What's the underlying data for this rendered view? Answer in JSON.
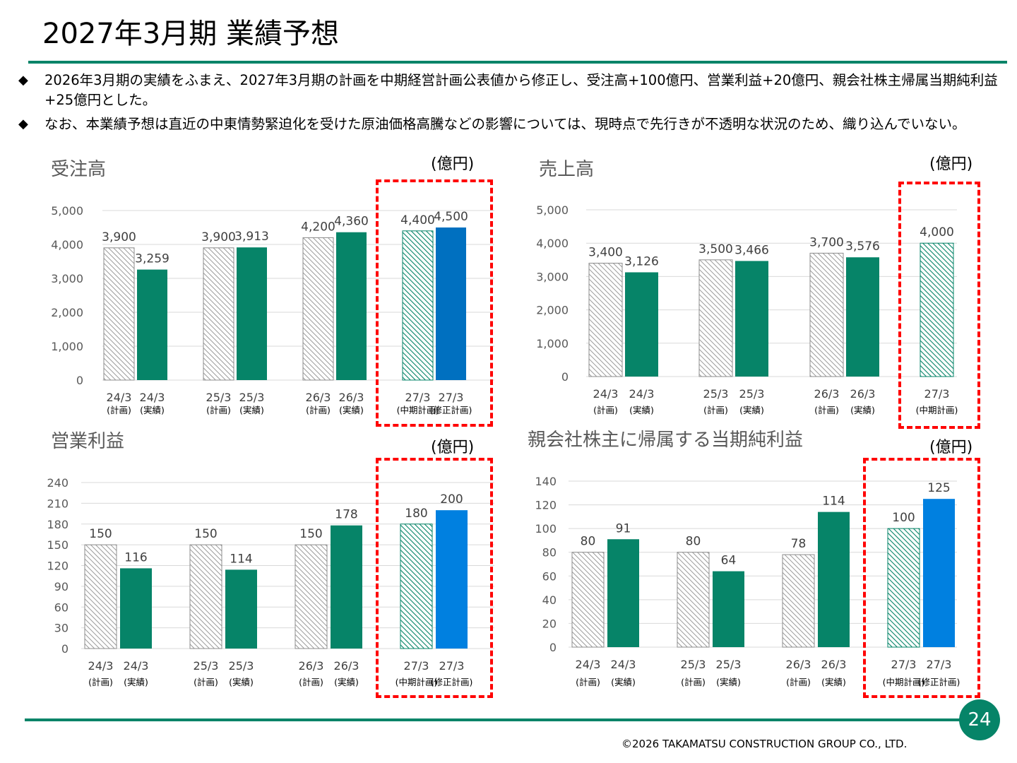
{
  "page": {
    "title": "2027年3月期 業績予想",
    "bullets": [
      {
        "mark": "◆",
        "text": "2026年3月期の実績をふまえ、2027年3月期の計画を中期経営計画公表値から修正し、受注高+100億円、営業利益+20億円、親会社株主帰属当期純利益+25億円とした。"
      },
      {
        "mark": "◆",
        "text": "なお、本業績予想は直近の中東情勢緊迫化を受けた原油価格高騰などの影響については、現時点で先行きが不透明な状況のため、織り込んでいない。"
      }
    ],
    "page_number": "24",
    "copyright": "©2026 TAKAMATSU CONSTRUCTION GROUP CO., LTD."
  },
  "colors": {
    "accent_green": "#068468",
    "plan_hatch": "#9a9a9a",
    "revised_blue_1": "#0070c0",
    "revised_blue_2": "#0080e0",
    "highlight_red": "#ff0000"
  },
  "chart_data": [
    {
      "type": "bar",
      "title": "受注高",
      "unit": "(億円)",
      "ylim": [
        0,
        5000
      ],
      "yticks": [
        "0",
        "1,000",
        "2,000",
        "3,000",
        "4,000",
        "5,000"
      ],
      "grid": true,
      "groups": [
        {
          "bars": [
            {
              "period": "24/3",
              "kind": "(計画)",
              "value": 3900,
              "label": "3,900",
              "style": "plan"
            },
            {
              "period": "24/3",
              "kind": "(実績)",
              "value": 3259,
              "label": "3,259",
              "style": "actual"
            }
          ]
        },
        {
          "bars": [
            {
              "period": "25/3",
              "kind": "(計画)",
              "value": 3900,
              "label": "3,900",
              "style": "plan"
            },
            {
              "period": "25/3",
              "kind": "(実績)",
              "value": 3913,
              "label": "3,913",
              "style": "actual"
            }
          ]
        },
        {
          "bars": [
            {
              "period": "26/3",
              "kind": "(計画)",
              "value": 4200,
              "label": "4,200",
              "style": "plan"
            },
            {
              "period": "26/3",
              "kind": "(実績)",
              "value": 4360,
              "label": "4,360",
              "style": "actual"
            }
          ]
        },
        {
          "highlight": true,
          "bars": [
            {
              "period": "27/3",
              "kind": "(中期計画)",
              "value": 4400,
              "label": "4,400",
              "style": "midplan"
            },
            {
              "period": "27/3",
              "kind": "(修正計画)",
              "value": 4500,
              "label": "4,500",
              "style": "revised1"
            }
          ]
        }
      ]
    },
    {
      "type": "bar",
      "title": "売上高",
      "unit": "(億円)",
      "ylim": [
        0,
        5000
      ],
      "yticks": [
        "0",
        "1,000",
        "2,000",
        "3,000",
        "4,000",
        "5,000"
      ],
      "grid": true,
      "groups": [
        {
          "bars": [
            {
              "period": "24/3",
              "kind": "(計画)",
              "value": 3400,
              "label": "3,400",
              "style": "plan"
            },
            {
              "period": "24/3",
              "kind": "(実績)",
              "value": 3126,
              "label": "3,126",
              "style": "actual"
            }
          ]
        },
        {
          "bars": [
            {
              "period": "25/3",
              "kind": "(計画)",
              "value": 3500,
              "label": "3,500",
              "style": "plan"
            },
            {
              "period": "25/3",
              "kind": "(実績)",
              "value": 3466,
              "label": "3,466",
              "style": "actual"
            }
          ]
        },
        {
          "bars": [
            {
              "period": "26/3",
              "kind": "(計画)",
              "value": 3700,
              "label": "3,700",
              "style": "plan"
            },
            {
              "period": "26/3",
              "kind": "(実績)",
              "value": 3576,
              "label": "3,576",
              "style": "actual"
            }
          ]
        },
        {
          "highlight": true,
          "bars": [
            {
              "period": "27/3",
              "kind": "(中期計画)",
              "value": 4000,
              "label": "4,000",
              "style": "midplan"
            }
          ]
        }
      ]
    },
    {
      "type": "bar",
      "title": "営業利益",
      "unit": "(億円)",
      "ylim": [
        0,
        240
      ],
      "yticks": [
        "0",
        "30",
        "60",
        "90",
        "120",
        "150",
        "180",
        "210",
        "240"
      ],
      "grid": true,
      "groups": [
        {
          "bars": [
            {
              "period": "24/3",
              "kind": "(計画)",
              "value": 150,
              "label": "150",
              "style": "plan"
            },
            {
              "period": "24/3",
              "kind": "(実績)",
              "value": 116,
              "label": "116",
              "style": "actual"
            }
          ]
        },
        {
          "bars": [
            {
              "period": "25/3",
              "kind": "(計画)",
              "value": 150,
              "label": "150",
              "style": "plan"
            },
            {
              "period": "25/3",
              "kind": "(実績)",
              "value": 114,
              "label": "114",
              "style": "actual"
            }
          ]
        },
        {
          "bars": [
            {
              "period": "26/3",
              "kind": "(計画)",
              "value": 150,
              "label": "150",
              "style": "plan"
            },
            {
              "period": "26/3",
              "kind": "(実績)",
              "value": 178,
              "label": "178",
              "style": "actual"
            }
          ]
        },
        {
          "highlight": true,
          "bars": [
            {
              "period": "27/3",
              "kind": "(中期計画)",
              "value": 180,
              "label": "180",
              "style": "midplan"
            },
            {
              "period": "27/3",
              "kind": "(修正計画)",
              "value": 200,
              "label": "200",
              "style": "revised2"
            }
          ]
        }
      ]
    },
    {
      "type": "bar",
      "title": "親会社株主に帰属する当期純利益",
      "unit": "(億円)",
      "ylim": [
        0,
        140
      ],
      "yticks": [
        "0",
        "20",
        "40",
        "60",
        "80",
        "100",
        "120",
        "140"
      ],
      "grid": true,
      "groups": [
        {
          "bars": [
            {
              "period": "24/3",
              "kind": "(計画)",
              "value": 80,
              "label": "80",
              "style": "plan"
            },
            {
              "period": "24/3",
              "kind": "(実績)",
              "value": 91,
              "label": "91",
              "style": "actual"
            }
          ]
        },
        {
          "bars": [
            {
              "period": "25/3",
              "kind": "(計画)",
              "value": 80,
              "label": "80",
              "style": "plan"
            },
            {
              "period": "25/3",
              "kind": "(実績)",
              "value": 64,
              "label": "64",
              "style": "actual"
            }
          ]
        },
        {
          "bars": [
            {
              "period": "26/3",
              "kind": "(計画)",
              "value": 78,
              "label": "78",
              "style": "plan"
            },
            {
              "period": "26/3",
              "kind": "(実績)",
              "value": 114,
              "label": "114",
              "style": "actual"
            }
          ]
        },
        {
          "highlight": true,
          "bars": [
            {
              "period": "27/3",
              "kind": "(中期計画)",
              "value": 100,
              "label": "100",
              "style": "midplan"
            },
            {
              "period": "27/3",
              "kind": "(修正計画)",
              "value": 125,
              "label": "125",
              "style": "revised2"
            }
          ]
        }
      ]
    }
  ]
}
